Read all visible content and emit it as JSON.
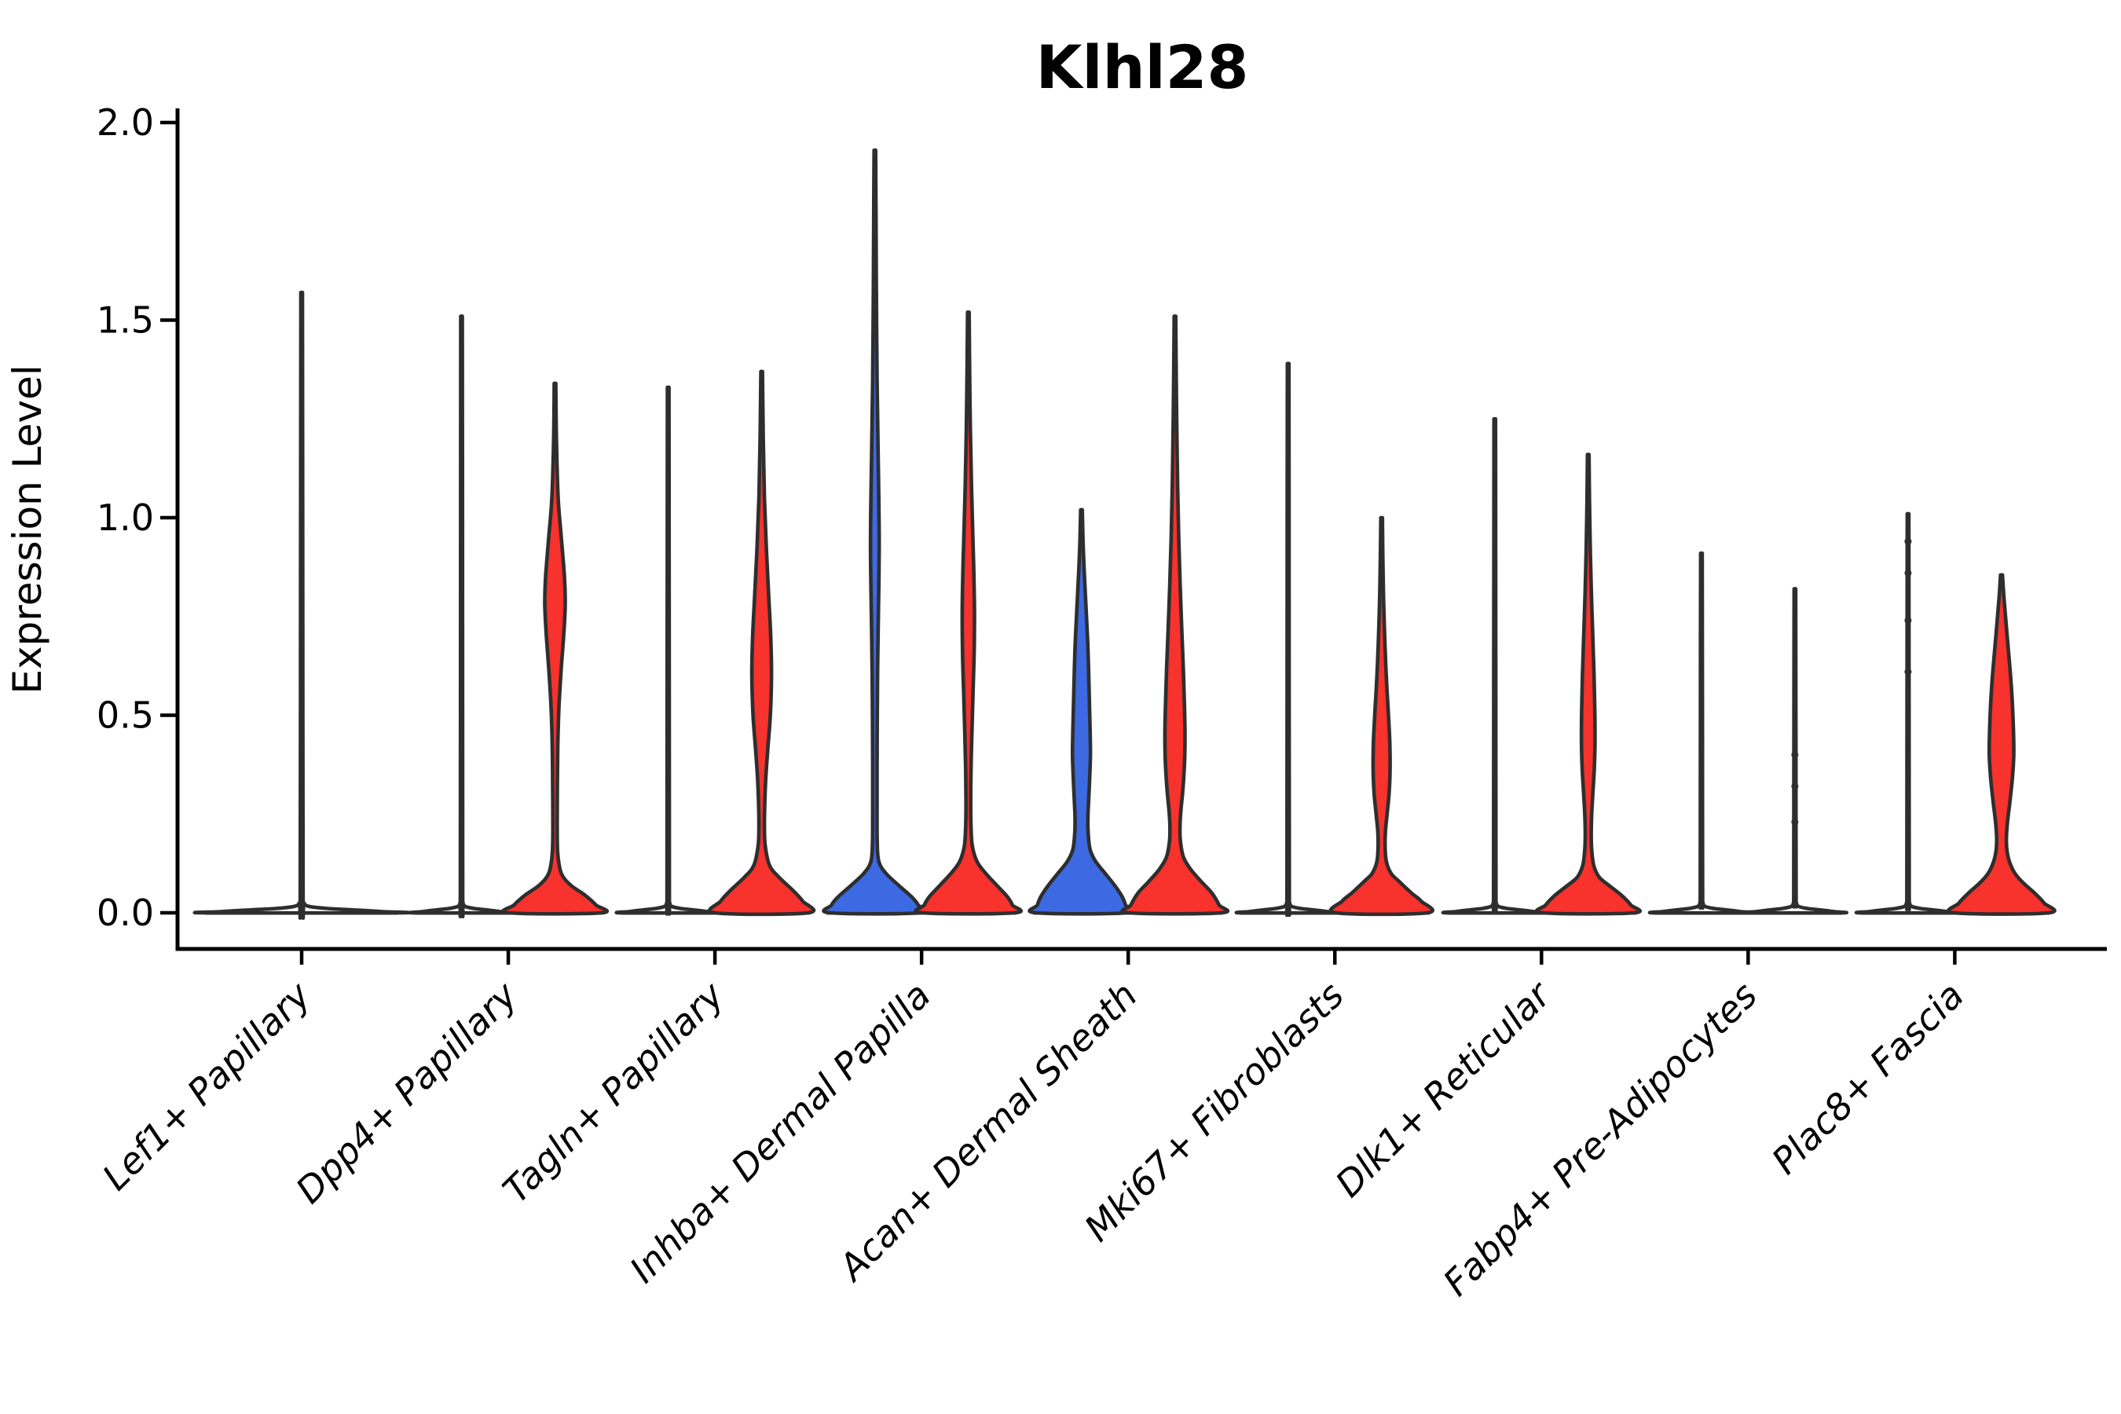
{
  "title": "Klhl28",
  "ylabel": "Expression Level",
  "chart_data": {
    "type": "violin",
    "title": "Klhl28",
    "xlabel": "",
    "ylabel": "Expression Level",
    "ylim": [
      0,
      2.0
    ],
    "yticks": [
      0.0,
      0.5,
      1.0,
      1.5,
      2.0
    ],
    "ytick_labels": [
      "0.0",
      "0.5",
      "1.0",
      "1.5",
      "2.0"
    ],
    "grid": false,
    "legend_position": "none",
    "colors": {
      "red": "#f8322c",
      "blue": "#3d6ae3",
      "white": "#ffffff",
      "outline": "#2e2e2e",
      "baseline": "#4b4b4b",
      "text": "#000000"
    },
    "categories": [
      "Lef1+ Papillary",
      "Dpp4+ Papillary",
      "Tagln+ Papillary",
      "Inhba+ Dermal Papilla",
      "Acan+ Dermal Sheath",
      "Mki67+ Fibroblasts",
      "Dlk1+ Reticular",
      "Fabp4+ Pre-Adipocytes",
      "Plac8+ Fascia"
    ],
    "violins": [
      {
        "category_index": 0,
        "category": "Lef1+ Papillary",
        "side": "center",
        "fill": "white",
        "max_expression": 1.57,
        "outlier_dots": [],
        "profile": [
          [
            1.57,
            1
          ],
          [
            0.8,
            1.4
          ],
          [
            0.05,
            1.8
          ],
          [
            0.025,
            3
          ],
          [
            0.016,
            10
          ],
          [
            0.011,
            33
          ],
          [
            0.007,
            70
          ],
          [
            0.003,
            103
          ],
          [
            0,
            122
          ]
        ]
      },
      {
        "category_index": 1,
        "category": "Dpp4+ Papillary",
        "side": "left",
        "fill": "white",
        "max_expression": 1.51,
        "outlier_dots": [],
        "profile": [
          [
            1.51,
            1
          ],
          [
            0.75,
            1.3
          ],
          [
            0.05,
            1.5
          ],
          [
            0.025,
            2
          ],
          [
            0.016,
            5
          ],
          [
            0.011,
            16
          ],
          [
            0.007,
            34
          ],
          [
            0.003,
            50
          ],
          [
            0,
            59
          ]
        ]
      },
      {
        "category_index": 1,
        "category": "Dpp4+ Papillary",
        "side": "right",
        "fill": "red",
        "max_expression": 1.34,
        "outlier_dots": [],
        "profile": [
          [
            1.34,
            1
          ],
          [
            1.2,
            1.8
          ],
          [
            1.05,
            4
          ],
          [
            0.95,
            8
          ],
          [
            0.85,
            12
          ],
          [
            0.78,
            13
          ],
          [
            0.7,
            11
          ],
          [
            0.62,
            8
          ],
          [
            0.52,
            5
          ],
          [
            0.42,
            3.5
          ],
          [
            0.32,
            3
          ],
          [
            0.22,
            2.8
          ],
          [
            0.15,
            3.5
          ],
          [
            0.1,
            8
          ],
          [
            0.07,
            20
          ],
          [
            0.045,
            38
          ],
          [
            0.02,
            52
          ],
          [
            0,
            59
          ]
        ]
      },
      {
        "category_index": 2,
        "category": "Tagln+ Papillary",
        "side": "left",
        "fill": "white",
        "max_expression": 1.33,
        "outlier_dots": [],
        "profile": [
          [
            1.33,
            1
          ],
          [
            0.66,
            1.3
          ],
          [
            0.05,
            1.5
          ],
          [
            0.025,
            2
          ],
          [
            0.016,
            5
          ],
          [
            0.011,
            16
          ],
          [
            0.007,
            34
          ],
          [
            0.003,
            50
          ],
          [
            0,
            59
          ]
        ]
      },
      {
        "category_index": 2,
        "category": "Tagln+ Papillary",
        "side": "right",
        "fill": "red",
        "max_expression": 1.37,
        "outlier_dots": [],
        "profile": [
          [
            1.37,
            1
          ],
          [
            1.2,
            2
          ],
          [
            1.05,
            3.5
          ],
          [
            0.92,
            6
          ],
          [
            0.8,
            9
          ],
          [
            0.7,
            11.5
          ],
          [
            0.6,
            12.5
          ],
          [
            0.5,
            11
          ],
          [
            0.42,
            8
          ],
          [
            0.35,
            5.5
          ],
          [
            0.28,
            4
          ],
          [
            0.22,
            3.5
          ],
          [
            0.17,
            4.5
          ],
          [
            0.12,
            10
          ],
          [
            0.09,
            22
          ],
          [
            0.06,
            38
          ],
          [
            0.03,
            52
          ],
          [
            0,
            59
          ]
        ]
      },
      {
        "category_index": 3,
        "category": "Inhba+ Dermal Papilla",
        "side": "left",
        "fill": "blue",
        "max_expression": 1.93,
        "outlier_dots": [],
        "profile": [
          [
            1.93,
            1
          ],
          [
            1.75,
            1.5
          ],
          [
            1.55,
            2
          ],
          [
            1.35,
            2.8
          ],
          [
            1.18,
            4
          ],
          [
            1.05,
            5
          ],
          [
            0.95,
            5.5
          ],
          [
            0.85,
            5.2
          ],
          [
            0.72,
            4.2
          ],
          [
            0.6,
            3.4
          ],
          [
            0.48,
            3
          ],
          [
            0.36,
            2.8
          ],
          [
            0.26,
            2.8
          ],
          [
            0.18,
            3
          ],
          [
            0.13,
            5
          ],
          [
            0.1,
            14
          ],
          [
            0.07,
            30
          ],
          [
            0.04,
            47
          ],
          [
            0.02,
            55
          ],
          [
            0,
            57
          ]
        ]
      },
      {
        "category_index": 3,
        "category": "Inhba+ Dermal Papilla",
        "side": "right",
        "fill": "red",
        "max_expression": 1.52,
        "outlier_dots": [],
        "profile": [
          [
            1.52,
            1
          ],
          [
            1.38,
            1.6
          ],
          [
            1.22,
            2.6
          ],
          [
            1.08,
            4
          ],
          [
            0.96,
            5.6
          ],
          [
            0.86,
            7
          ],
          [
            0.76,
            7.8
          ],
          [
            0.66,
            7.4
          ],
          [
            0.56,
            6
          ],
          [
            0.46,
            4.6
          ],
          [
            0.36,
            3.4
          ],
          [
            0.28,
            3
          ],
          [
            0.22,
            3.4
          ],
          [
            0.17,
            5
          ],
          [
            0.13,
            11
          ],
          [
            0.1,
            22
          ],
          [
            0.07,
            36
          ],
          [
            0.04,
            50
          ],
          [
            0.02,
            56
          ],
          [
            0,
            59
          ]
        ]
      },
      {
        "category_index": 4,
        "category": "Acan+ Dermal Sheath",
        "side": "left",
        "fill": "blue",
        "max_expression": 1.02,
        "outlier_dots": [],
        "profile": [
          [
            1.02,
            1
          ],
          [
            0.94,
            2
          ],
          [
            0.86,
            3.6
          ],
          [
            0.78,
            5.6
          ],
          [
            0.7,
            7.6
          ],
          [
            0.62,
            9
          ],
          [
            0.54,
            10
          ],
          [
            0.46,
            11
          ],
          [
            0.4,
            11.4
          ],
          [
            0.34,
            10.4
          ],
          [
            0.28,
            9
          ],
          [
            0.24,
            8.2
          ],
          [
            0.2,
            8.6
          ],
          [
            0.16,
            11
          ],
          [
            0.13,
            18
          ],
          [
            0.1,
            30
          ],
          [
            0.07,
            42
          ],
          [
            0.04,
            52
          ],
          [
            0.02,
            56
          ],
          [
            0,
            58
          ]
        ]
      },
      {
        "category_index": 4,
        "category": "Acan+ Dermal Sheath",
        "side": "right",
        "fill": "red",
        "max_expression": 1.51,
        "outlier_dots": [],
        "profile": [
          [
            1.51,
            1
          ],
          [
            1.36,
            1.6
          ],
          [
            1.22,
            2.4
          ],
          [
            1.08,
            3.4
          ],
          [
            0.95,
            4.8
          ],
          [
            0.83,
            6.6
          ],
          [
            0.72,
            8.6
          ],
          [
            0.62,
            10.6
          ],
          [
            0.53,
            12
          ],
          [
            0.45,
            12.8
          ],
          [
            0.38,
            12.2
          ],
          [
            0.31,
            10
          ],
          [
            0.26,
            7.6
          ],
          [
            0.22,
            6.4
          ],
          [
            0.18,
            7
          ],
          [
            0.14,
            11
          ],
          [
            0.11,
            20
          ],
          [
            0.08,
            33
          ],
          [
            0.05,
            47
          ],
          [
            0.02,
            56
          ],
          [
            0,
            59
          ]
        ]
      },
      {
        "category_index": 5,
        "category": "Mki67+ Fibroblasts",
        "side": "left",
        "fill": "white",
        "max_expression": 1.39,
        "outlier_dots": [],
        "profile": [
          [
            1.39,
            1
          ],
          [
            0.7,
            1.3
          ],
          [
            0.05,
            1.5
          ],
          [
            0.025,
            2
          ],
          [
            0.016,
            5
          ],
          [
            0.011,
            16
          ],
          [
            0.007,
            34
          ],
          [
            0.003,
            50
          ],
          [
            0,
            59
          ]
        ]
      },
      {
        "category_index": 5,
        "category": "Mki67+ Fibroblasts",
        "side": "right",
        "fill": "red",
        "max_expression": 1.0,
        "outlier_dots": [],
        "profile": [
          [
            1.0,
            1
          ],
          [
            0.9,
            1.6
          ],
          [
            0.79,
            2.6
          ],
          [
            0.68,
            4.2
          ],
          [
            0.58,
            6.4
          ],
          [
            0.5,
            8.8
          ],
          [
            0.43,
            10.4
          ],
          [
            0.36,
            10.8
          ],
          [
            0.3,
            9.4
          ],
          [
            0.25,
            7
          ],
          [
            0.21,
            5
          ],
          [
            0.17,
            4.4
          ],
          [
            0.13,
            6
          ],
          [
            0.1,
            12
          ],
          [
            0.08,
            22
          ],
          [
            0.05,
            38
          ],
          [
            0.03,
            50
          ],
          [
            0,
            58
          ]
        ]
      },
      {
        "category_index": 6,
        "category": "Dlk1+ Reticular",
        "side": "left",
        "fill": "white",
        "max_expression": 1.25,
        "outlier_dots": [],
        "profile": [
          [
            1.25,
            1
          ],
          [
            0.62,
            1.3
          ],
          [
            0.05,
            1.5
          ],
          [
            0.025,
            2
          ],
          [
            0.016,
            5
          ],
          [
            0.011,
            16
          ],
          [
            0.007,
            34
          ],
          [
            0.003,
            50
          ],
          [
            0,
            59
          ]
        ]
      },
      {
        "category_index": 6,
        "category": "Dlk1+ Reticular",
        "side": "right",
        "fill": "red",
        "max_expression": 1.16,
        "outlier_dots": [],
        "profile": [
          [
            1.16,
            1
          ],
          [
            1.04,
            1.6
          ],
          [
            0.92,
            2.6
          ],
          [
            0.81,
            4
          ],
          [
            0.7,
            5.8
          ],
          [
            0.6,
            7.4
          ],
          [
            0.51,
            8.4
          ],
          [
            0.43,
            8.6
          ],
          [
            0.36,
            7.6
          ],
          [
            0.3,
            5.8
          ],
          [
            0.25,
            4.4
          ],
          [
            0.2,
            3.8
          ],
          [
            0.16,
            4.4
          ],
          [
            0.12,
            7
          ],
          [
            0.09,
            14
          ],
          [
            0.07,
            26
          ],
          [
            0.045,
            42
          ],
          [
            0.02,
            54
          ],
          [
            0,
            58
          ]
        ]
      },
      {
        "category_index": 7,
        "category": "Fabp4+ Pre-Adipocytes",
        "side": "left",
        "fill": "white",
        "max_expression": 0.91,
        "outlier_dots": [],
        "profile": [
          [
            0.91,
            1
          ],
          [
            0.45,
            1.3
          ],
          [
            0.05,
            1.5
          ],
          [
            0.025,
            2
          ],
          [
            0.016,
            5
          ],
          [
            0.011,
            16
          ],
          [
            0.007,
            34
          ],
          [
            0.003,
            50
          ],
          [
            0,
            59
          ]
        ]
      },
      {
        "category_index": 7,
        "category": "Fabp4+ Pre-Adipocytes",
        "side": "right",
        "fill": "white",
        "max_expression": 0.82,
        "outlier_dots": [
          0.4,
          0.32,
          0.23
        ],
        "profile": [
          [
            0.82,
            1
          ],
          [
            0.41,
            1.3
          ],
          [
            0.05,
            1.5
          ],
          [
            0.025,
            2
          ],
          [
            0.016,
            5
          ],
          [
            0.011,
            16
          ],
          [
            0.007,
            34
          ],
          [
            0.003,
            50
          ],
          [
            0,
            59
          ]
        ]
      },
      {
        "category_index": 8,
        "category": "Plac8+ Fascia",
        "side": "left",
        "fill": "white",
        "max_expression": 1.01,
        "outlier_dots": [
          0.94,
          0.86,
          0.74,
          0.61
        ],
        "profile": [
          [
            1.01,
            1
          ],
          [
            0.5,
            1.3
          ],
          [
            0.05,
            1.5
          ],
          [
            0.025,
            2
          ],
          [
            0.016,
            5
          ],
          [
            0.011,
            16
          ],
          [
            0.007,
            34
          ],
          [
            0.003,
            50
          ],
          [
            0,
            59
          ]
        ]
      },
      {
        "category_index": 8,
        "category": "Plac8+ Fascia",
        "side": "right",
        "fill": "red",
        "max_expression": 0.855,
        "outlier_dots": [],
        "profile": [
          [
            0.855,
            1.2
          ],
          [
            0.8,
            3
          ],
          [
            0.74,
            5.5
          ],
          [
            0.67,
            8.5
          ],
          [
            0.6,
            11.5
          ],
          [
            0.53,
            13.8
          ],
          [
            0.46,
            15.2
          ],
          [
            0.4,
            15.6
          ],
          [
            0.34,
            13.8
          ],
          [
            0.28,
            10.6
          ],
          [
            0.23,
            7.6
          ],
          [
            0.19,
            6.2
          ],
          [
            0.16,
            6.8
          ],
          [
            0.13,
            10
          ],
          [
            0.1,
            17
          ],
          [
            0.075,
            28
          ],
          [
            0.05,
            42
          ],
          [
            0.025,
            54
          ],
          [
            0,
            60
          ]
        ]
      }
    ]
  }
}
